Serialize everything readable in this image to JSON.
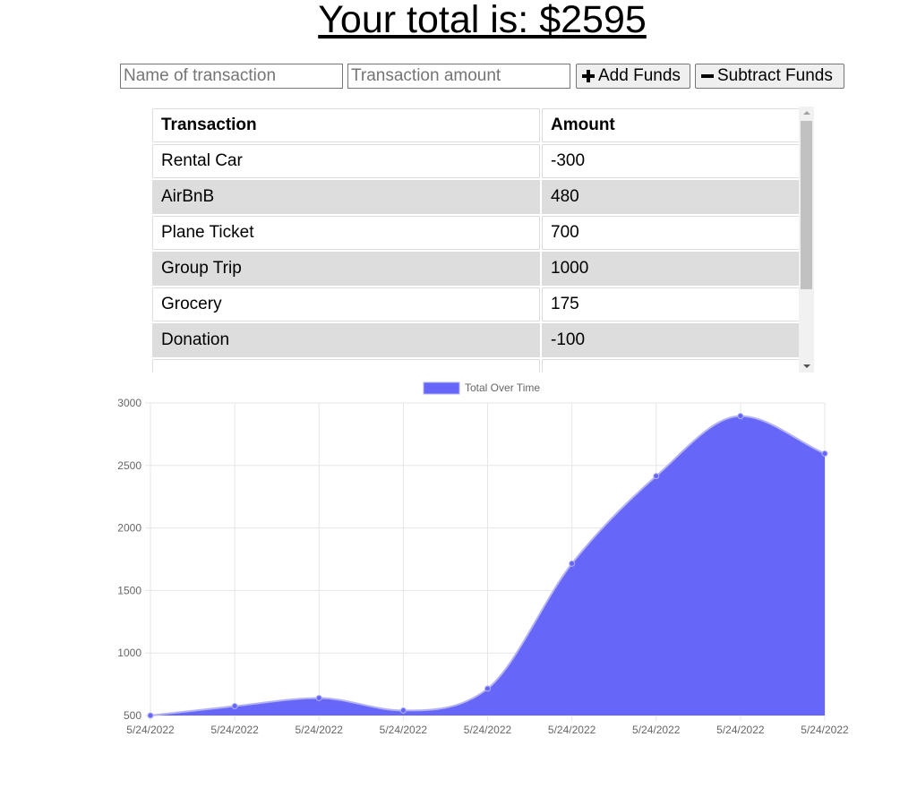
{
  "header": {
    "prefix": "Your total is: $",
    "total": "2595"
  },
  "form": {
    "name_placeholder": "Name of transaction",
    "amount_placeholder": "Transaction amount",
    "add_label": "Add Funds",
    "subtract_label": "Subtract Funds"
  },
  "table": {
    "headers": [
      "Transaction",
      "Amount"
    ],
    "rows": [
      {
        "name": "Rental Car",
        "amount": "-300"
      },
      {
        "name": "AirBnB",
        "amount": "480"
      },
      {
        "name": "Plane Ticket",
        "amount": "700"
      },
      {
        "name": "Group Trip",
        "amount": "1000"
      },
      {
        "name": "Grocery",
        "amount": "175"
      },
      {
        "name": "Donation",
        "amount": "-100"
      }
    ]
  },
  "colors": {
    "fill": "#6666f8",
    "stroke": "#b3b3f5",
    "row_alt": "#dddddd"
  },
  "chart_data": {
    "type": "area",
    "legend": "Total Over Time",
    "legend_position": "top",
    "categories": [
      "5/24/2022",
      "5/24/2022",
      "5/24/2022",
      "5/24/2022",
      "5/24/2022",
      "5/24/2022",
      "5/24/2022",
      "5/24/2022",
      "5/24/2022"
    ],
    "values": [
      500,
      575,
      640,
      540,
      715,
      1715,
      2415,
      2895,
      2595
    ],
    "ylim": [
      500,
      3000
    ],
    "yticks": [
      500,
      1000,
      1500,
      2000,
      2500,
      3000
    ],
    "grid": true,
    "smooth": true
  }
}
